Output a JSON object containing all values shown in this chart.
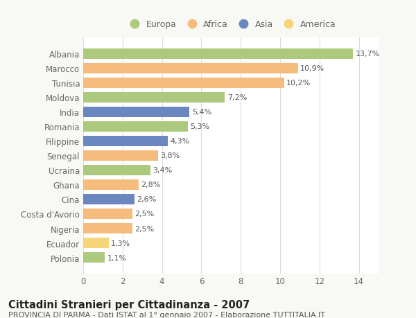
{
  "categories": [
    "Albania",
    "Marocco",
    "Tunisia",
    "Moldova",
    "India",
    "Romania",
    "Filippine",
    "Senegal",
    "Ucraina",
    "Ghana",
    "Cina",
    "Costa d'Avorio",
    "Nigeria",
    "Ecuador",
    "Polonia"
  ],
  "values": [
    13.7,
    10.9,
    10.2,
    7.2,
    5.4,
    5.3,
    4.3,
    3.8,
    3.4,
    2.8,
    2.6,
    2.5,
    2.5,
    1.3,
    1.1
  ],
  "labels": [
    "13,7%",
    "10,9%",
    "10,2%",
    "7,2%",
    "5,4%",
    "5,3%",
    "4,3%",
    "3,8%",
    "3,4%",
    "2,8%",
    "2,6%",
    "2,5%",
    "2,5%",
    "1,3%",
    "1,1%"
  ],
  "continents": [
    "Europa",
    "Africa",
    "Africa",
    "Europa",
    "Asia",
    "Europa",
    "Asia",
    "Africa",
    "Europa",
    "Africa",
    "Asia",
    "Africa",
    "Africa",
    "America",
    "Europa"
  ],
  "colors": {
    "Europa": "#adc97e",
    "Africa": "#f5bc7d",
    "Asia": "#6b87c0",
    "America": "#f5d47a"
  },
  "legend_order": [
    "Europa",
    "Africa",
    "Asia",
    "America"
  ],
  "xlim": [
    0,
    15
  ],
  "xticks": [
    0,
    2,
    4,
    6,
    8,
    10,
    12,
    14
  ],
  "title": "Cittadini Stranieri per Cittadinanza - 2007",
  "subtitle": "PROVINCIA DI PARMA - Dati ISTAT al 1° gennaio 2007 - Elaborazione TUTTITALIA.IT",
  "background_color": "#f8f8f5",
  "plot_background": "#ffffff",
  "grid_color": "#dddddd",
  "title_fontsize": 10.5,
  "subtitle_fontsize": 8,
  "tick_fontsize": 8.5,
  "label_fontsize": 8,
  "legend_fontsize": 9,
  "bar_height": 0.72,
  "label_color": "#555555",
  "tick_color": "#666666"
}
